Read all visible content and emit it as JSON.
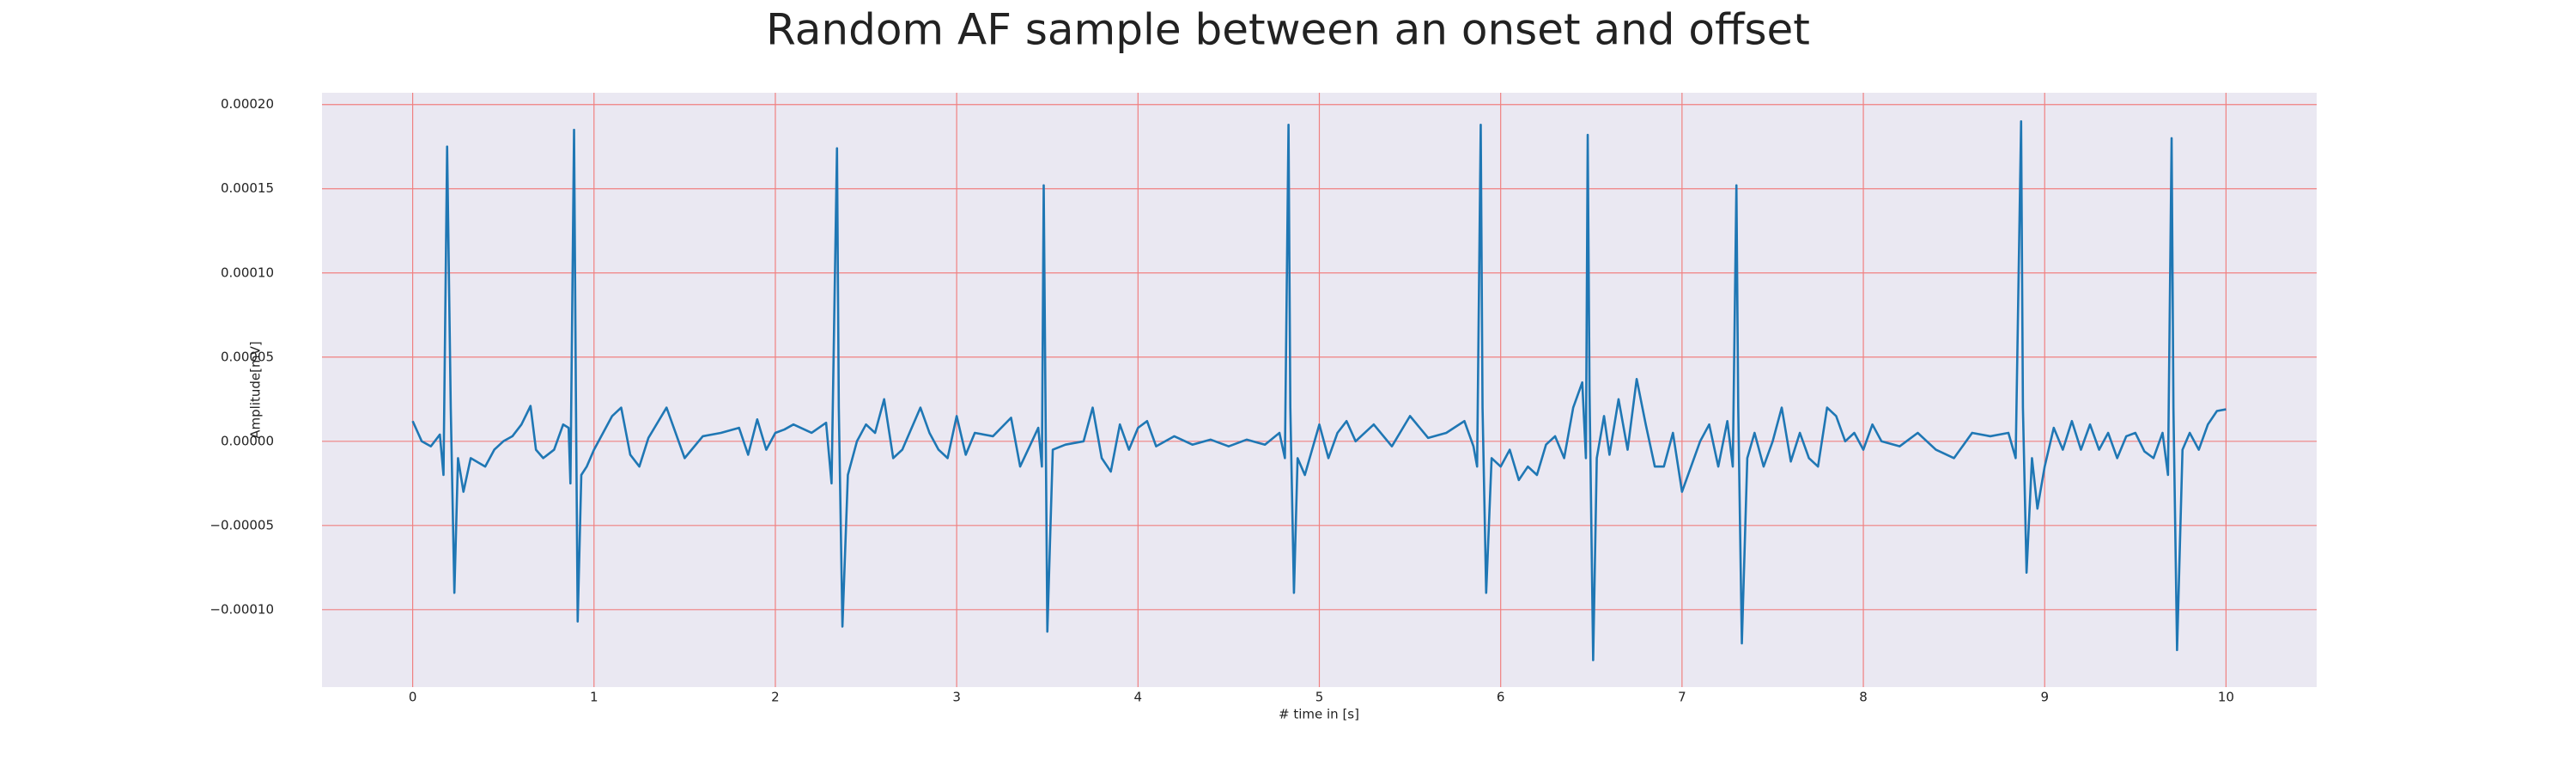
{
  "chart_data": {
    "type": "line",
    "title": "Random AF sample between an onset and offset",
    "xlabel": "# time in [s]",
    "ylabel": "Amplitude[mV]",
    "color": "#1f77b4",
    "grid": true,
    "grid_color": "#f08080",
    "background": "#eae8f2",
    "xlim": [
      -0.5,
      10.5
    ],
    "xticks": [
      0,
      1,
      2,
      3,
      4,
      5,
      6,
      7,
      8,
      9,
      10
    ],
    "ylim": [
      -0.000146,
      0.000207
    ],
    "yticks": [
      {
        "value": -0.0001,
        "label": "−0.00010"
      },
      {
        "value": -5e-05,
        "label": "−0.00005"
      },
      {
        "value": 0,
        "label": "0.00000"
      },
      {
        "value": 5e-05,
        "label": "0.00005"
      },
      {
        "value": 0.0001,
        "label": "0.00010"
      },
      {
        "value": 0.00015,
        "label": "0.00015"
      },
      {
        "value": 0.0002,
        "label": "0.00020"
      }
    ],
    "x": [
      0,
      0.05,
      0.1,
      0.15,
      0.17,
      0.19,
      0.21,
      0.23,
      0.25,
      0.28,
      0.32,
      0.4,
      0.45,
      0.5,
      0.55,
      0.6,
      0.65,
      0.68,
      0.72,
      0.78,
      0.83,
      0.86,
      0.87,
      0.89,
      0.9,
      0.91,
      0.93,
      0.96,
      1.0,
      1.05,
      1.1,
      1.15,
      1.2,
      1.25,
      1.3,
      1.4,
      1.45,
      1.5,
      1.6,
      1.7,
      1.8,
      1.85,
      1.9,
      1.95,
      2.0,
      2.05,
      2.1,
      2.2,
      2.28,
      2.31,
      2.34,
      2.35,
      2.37,
      2.4,
      2.45,
      2.5,
      2.55,
      2.6,
      2.65,
      2.7,
      2.8,
      2.85,
      2.9,
      2.95,
      3.0,
      3.05,
      3.1,
      3.2,
      3.3,
      3.35,
      3.45,
      3.47,
      3.48,
      3.49,
      3.5,
      3.53,
      3.6,
      3.7,
      3.75,
      3.8,
      3.85,
      3.9,
      3.95,
      4.0,
      4.05,
      4.1,
      4.2,
      4.3,
      4.4,
      4.5,
      4.6,
      4.7,
      4.78,
      4.81,
      4.83,
      4.84,
      4.86,
      4.88,
      4.92,
      5.0,
      5.05,
      5.1,
      5.15,
      5.2,
      5.3,
      5.4,
      5.5,
      5.6,
      5.7,
      5.8,
      5.85,
      5.87,
      5.89,
      5.9,
      5.92,
      5.95,
      6.0,
      6.05,
      6.1,
      6.15,
      6.2,
      6.25,
      6.3,
      6.35,
      6.4,
      6.45,
      6.47,
      6.48,
      6.49,
      6.51,
      6.53,
      6.57,
      6.6,
      6.65,
      6.7,
      6.75,
      6.8,
      6.85,
      6.9,
      6.95,
      7.0,
      7.05,
      7.1,
      7.15,
      7.2,
      7.25,
      7.28,
      7.3,
      7.31,
      7.33,
      7.36,
      7.4,
      7.45,
      7.5,
      7.55,
      7.6,
      7.65,
      7.7,
      7.75,
      7.8,
      7.85,
      7.9,
      7.95,
      8.0,
      8.05,
      8.1,
      8.2,
      8.3,
      8.4,
      8.5,
      8.6,
      8.7,
      8.8,
      8.84,
      8.87,
      8.88,
      8.9,
      8.93,
      8.96,
      9.0,
      9.05,
      9.1,
      9.15,
      9.2,
      9.25,
      9.3,
      9.35,
      9.4,
      9.45,
      9.5,
      9.55,
      9.6,
      9.65,
      9.68,
      9.7,
      9.71,
      9.73,
      9.76,
      9.8,
      9.85,
      9.9,
      9.95,
      10.0
    ],
    "values": [
      1.2e-05,
      0,
      -3e-06,
      4e-06,
      -2e-05,
      0.000175,
      2e-05,
      -9e-05,
      -1e-05,
      -3e-05,
      -1e-05,
      -1.5e-05,
      -5e-06,
      0,
      3e-06,
      1e-05,
      2.1e-05,
      -5e-06,
      -1e-05,
      -5e-06,
      1e-05,
      8e-06,
      -2.5e-05,
      0.000185,
      3e-05,
      -0.000107,
      -2e-05,
      -1.5e-05,
      -5e-06,
      5e-06,
      1.5e-05,
      2e-05,
      -8e-06,
      -1.5e-05,
      2e-06,
      2e-05,
      5e-06,
      -1e-05,
      3e-06,
      5e-06,
      8e-06,
      -8e-06,
      1.3e-05,
      -5e-06,
      5e-06,
      7e-06,
      1e-05,
      5e-06,
      1.1e-05,
      -2.5e-05,
      0.000174,
      2e-05,
      -0.00011,
      -2e-05,
      0,
      1e-05,
      5e-06,
      2.5e-05,
      -1e-05,
      -5e-06,
      2e-05,
      5e-06,
      -5e-06,
      -1e-05,
      1.5e-05,
      -8e-06,
      5e-06,
      3e-06,
      1.4e-05,
      -1.5e-05,
      8e-06,
      -1.5e-05,
      0.000152,
      2e-05,
      -0.000113,
      -5e-06,
      -2e-06,
      0,
      2e-05,
      -1e-05,
      -1.8e-05,
      1e-05,
      -5e-06,
      8e-06,
      1.2e-05,
      -3e-06,
      3e-06,
      -2e-06,
      1e-06,
      -3e-06,
      1e-06,
      -2e-06,
      5e-06,
      -1e-05,
      0.000188,
      2e-05,
      -9e-05,
      -1e-05,
      -2e-05,
      1e-05,
      -1e-05,
      5e-06,
      1.2e-05,
      0,
      1e-05,
      -3e-06,
      1.5e-05,
      2e-06,
      5e-06,
      1.2e-05,
      -3e-06,
      -1.5e-05,
      0.000188,
      2e-05,
      -9e-05,
      -1e-05,
      -1.5e-05,
      -5e-06,
      -2.3e-05,
      -1.5e-05,
      -2e-05,
      -2e-06,
      3e-06,
      -1e-05,
      2e-05,
      3.5e-05,
      -1e-05,
      0.000182,
      3e-05,
      -0.00013,
      -1e-05,
      1.5e-05,
      -8e-06,
      2.5e-05,
      -5e-06,
      3.7e-05,
      1e-05,
      -1.5e-05,
      -1.5e-05,
      5e-06,
      -3e-05,
      -1.5e-05,
      0,
      1e-05,
      -1.5e-05,
      1.2e-05,
      -1.5e-05,
      0.000152,
      2e-05,
      -0.00012,
      -1e-05,
      5e-06,
      -1.5e-05,
      0,
      2e-05,
      -1.2e-05,
      5e-06,
      -1e-05,
      -1.5e-05,
      2e-05,
      1.5e-05,
      0,
      5e-06,
      -5e-06,
      1e-05,
      0,
      -3e-06,
      5e-06,
      -5e-06,
      -1e-05,
      5e-06,
      3e-06,
      5e-06,
      -1e-05,
      0.00019,
      2e-05,
      -7.8e-05,
      -1e-05,
      -4e-05,
      -1.5e-05,
      8e-06,
      -5e-06,
      1.2e-05,
      -5e-06,
      1e-05,
      -5e-06,
      5e-06,
      -1e-05,
      3e-06,
      5e-06,
      -6e-06,
      -1e-05,
      5e-06,
      -2e-05,
      0.00018,
      2e-05,
      -0.000124,
      -5e-06,
      5e-06,
      -5e-06,
      1e-05,
      1.8e-05,
      1.9e-05
    ]
  }
}
